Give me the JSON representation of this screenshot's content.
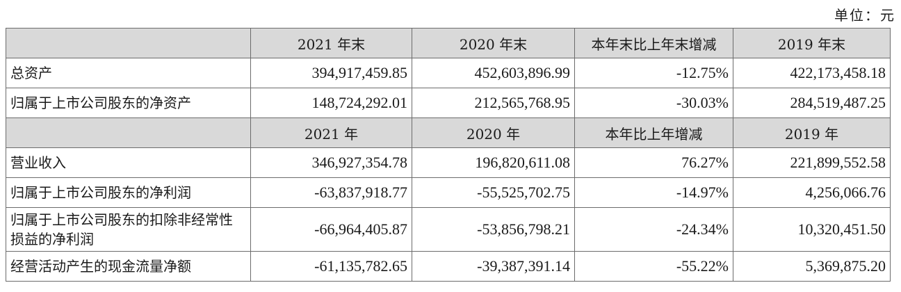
{
  "unit_label": "单位：元",
  "header_balance": {
    "col1": "2021 年末",
    "col2": "2020 年末",
    "col3": "本年末比上年末增减",
    "col4": "2019 年末"
  },
  "header_income": {
    "col1": "2021 年",
    "col2": "2020 年",
    "col3": "本年比上年增减",
    "col4": "2019 年"
  },
  "rows": [
    {
      "label": "总资产",
      "v2021": "394,917,459.85",
      "v2020": "452,603,896.99",
      "change": "-12.75%",
      "v2019": "422,173,458.18"
    },
    {
      "label": "归属于上市公司股东的净资产",
      "v2021": "148,724,292.01",
      "v2020": "212,565,768.95",
      "change": "-30.03%",
      "v2019": "284,519,487.25"
    },
    {
      "label": "营业收入",
      "v2021": "346,927,354.78",
      "v2020": "196,820,611.08",
      "change": "76.27%",
      "v2019": "221,899,552.58"
    },
    {
      "label": "归属于上市公司股东的净利润",
      "v2021": "-63,837,918.77",
      "v2020": "-55,525,702.75",
      "change": "-14.97%",
      "v2019": "4,256,066.76"
    },
    {
      "label": "归属于上市公司股东的扣除非经常性损益的净利润",
      "v2021": "-66,964,405.87",
      "v2020": "-53,856,798.21",
      "change": "-24.34%",
      "v2019": "10,320,451.50"
    },
    {
      "label": "经营活动产生的现金流量净额",
      "v2021": "-61,135,782.65",
      "v2020": "-39,387,391.14",
      "change": "-55.22%",
      "v2019": "5,369,875.20"
    }
  ]
}
